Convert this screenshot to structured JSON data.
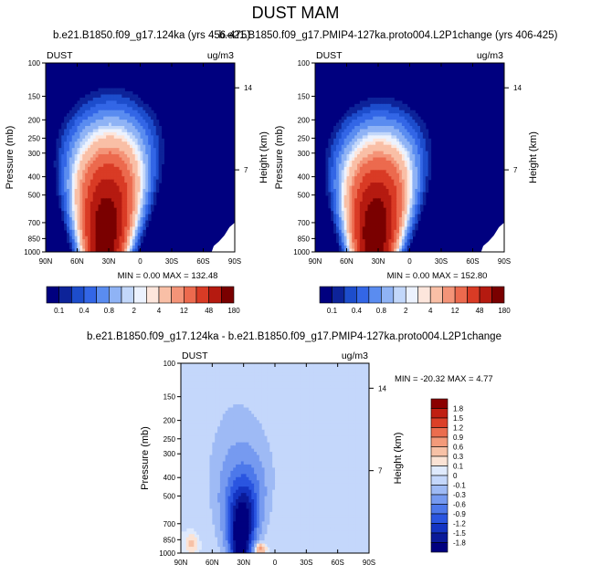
{
  "figure_title": "DUST MAM",
  "colors": {
    "mean_levels": [
      "#00007f",
      "#0d2399",
      "#1d4dcc",
      "#3366e6",
      "#5a8cf0",
      "#8fb3f5",
      "#c2d7fa",
      "#ecf2fe",
      "#fde6dc",
      "#f9bfa6",
      "#f49478",
      "#ec6a4e",
      "#d93b25",
      "#b51a10",
      "#7a0000"
    ],
    "diff_levels": [
      "#00007f",
      "#0a1a99",
      "#1434c2",
      "#2a55e0",
      "#4d78ea",
      "#769af0",
      "#9ebaf5",
      "#c4d7fb",
      "#dfeafd",
      "#fbe3d5",
      "#f7c1a6",
      "#f39a7a",
      "#eb6d4e",
      "#dc4028",
      "#c01f12",
      "#8b0000"
    ]
  },
  "chart_data": [
    {
      "type": "heatmap",
      "name": "panel-1",
      "title": "b.e21.B1850.f09_g17.124ka (yrs 456-475)",
      "variable": "DUST",
      "units": "ug/m3",
      "ylabel_left": "Pressure (mb)",
      "ylabel_right": "Height (km)",
      "x_ticks": [
        "90N",
        "60N",
        "30N",
        "0",
        "30S",
        "60S",
        "90S"
      ],
      "x_values": [
        90,
        60,
        30,
        0,
        -30,
        -60,
        -90
      ],
      "y_ticks": [
        "100",
        "150",
        "200",
        "250",
        "300",
        "400",
        "500",
        "700",
        "850",
        "1000"
      ],
      "y_values": [
        100,
        150,
        200,
        250,
        300,
        400,
        500,
        700,
        850,
        1000
      ],
      "right_ticks": [
        "14",
        "7"
      ],
      "right_values": [
        14,
        7
      ],
      "ylim": [
        1000,
        100
      ],
      "xlim": [
        90,
        -90
      ],
      "stats": "MIN =   0.00  MAX = 132.48",
      "min": 0.0,
      "max": 132.48,
      "colorbar": [
        "0.1",
        "0.4",
        "0.8",
        "2",
        "4",
        "12",
        "48",
        "180"
      ],
      "field": {
        "base": 0.0,
        "peak_lat": 34,
        "peak_p": 850,
        "center_top_lat": 28,
        "height": 6.0,
        "width": 11,
        "decay_p": 450,
        "pos_amp": 0,
        "neg_amp": 0
      }
    },
    {
      "type": "heatmap",
      "name": "panel-2",
      "title": "b.e21.B1850.f09_g17.PMIP4-127ka.proto004.L2P1change (yrs 406-425)",
      "variable": "DUST",
      "units": "ug/m3",
      "ylabel_left": "Pressure (mb)",
      "ylabel_right": "Height (km)",
      "x_ticks": [
        "90N",
        "60N",
        "30N",
        "0",
        "30S",
        "60S",
        "90S"
      ],
      "x_values": [
        90,
        60,
        30,
        0,
        -30,
        -60,
        -90
      ],
      "y_ticks": [
        "100",
        "150",
        "200",
        "250",
        "300",
        "400",
        "500",
        "700",
        "850",
        "1000"
      ],
      "y_values": [
        100,
        150,
        200,
        250,
        300,
        400,
        500,
        700,
        850,
        1000
      ],
      "right_ticks": [
        "14",
        "7"
      ],
      "right_values": [
        14,
        7
      ],
      "ylim": [
        1000,
        100
      ],
      "xlim": [
        90,
        -90
      ],
      "stats": "MIN =   0.00  MAX = 152.80",
      "min": 0.0,
      "max": 152.8,
      "colorbar": [
        "0.1",
        "0.4",
        "0.8",
        "2",
        "4",
        "12",
        "48",
        "180"
      ],
      "field": {
        "base": 0.0,
        "peak_lat": 34,
        "peak_p": 850,
        "center_top_lat": 28,
        "height": 6.4,
        "width": 11,
        "decay_p": 470,
        "pos_amp": 0,
        "neg_amp": 0
      }
    },
    {
      "type": "heatmap",
      "name": "panel-diff",
      "title": "b.e21.B1850.f09_g17.124ka - b.e21.B1850.f09_g17.PMIP4-127ka.proto004.L2P1change",
      "variable": "DUST",
      "units": "ug/m3",
      "ylabel_left": "Pressure (mb)",
      "ylabel_right": "Height (km)",
      "x_ticks": [
        "90N",
        "60N",
        "30N",
        "0",
        "30S",
        "60S",
        "90S"
      ],
      "x_values": [
        90,
        60,
        30,
        0,
        -30,
        -60,
        -90
      ],
      "y_ticks": [
        "100",
        "150",
        "200",
        "250",
        "300",
        "400",
        "500",
        "700",
        "850",
        "1000"
      ],
      "y_values": [
        100,
        150,
        200,
        250,
        300,
        400,
        500,
        700,
        850,
        1000
      ],
      "right_ticks": [
        "14",
        "7"
      ],
      "right_values": [
        14,
        7
      ],
      "ylim": [
        1000,
        100
      ],
      "xlim": [
        90,
        -90
      ],
      "stats": "MIN = -20.32  MAX =   4.77",
      "min": -20.32,
      "max": 4.77,
      "colorbar": [
        "1.8",
        "1.5",
        "1.2",
        "0.9",
        "0.6",
        "0.3",
        "0.1",
        "0",
        "-0.1",
        "-0.3",
        "-0.6",
        "-0.9",
        "-1.2",
        "-1.5",
        "-1.8"
      ],
      "field": {
        "base": -0.05,
        "peak_lat": 33,
        "peak_p": 800,
        "center_top_lat": 27,
        "height": -2.3,
        "width": 10,
        "decay_p": 420,
        "pos_amp": 0.6,
        "neg_amp": 0
      }
    }
  ]
}
